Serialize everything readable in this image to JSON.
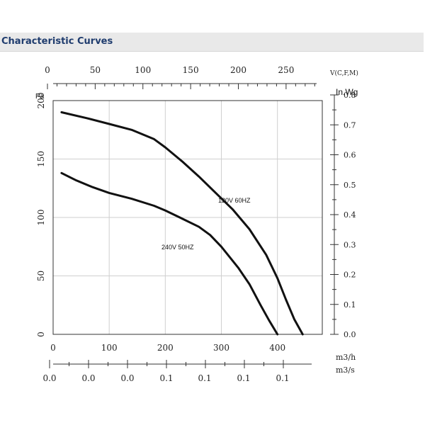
{
  "page": {
    "section_title": "Characteristic Curves"
  },
  "chart_data": {
    "type": "line",
    "title": "",
    "xlabel": "m3/h",
    "ylabel": "Pa",
    "xlim": [
      0,
      480
    ],
    "ylim": [
      0,
      200
    ],
    "x_ticks": [
      "0",
      "100",
      "200",
      "300",
      "400"
    ],
    "y_ticks": [
      "0",
      "50",
      "100",
      "150",
      "200"
    ],
    "grid": true,
    "top_axis": {
      "label": "V(C,F,M)",
      "ticks": [
        "0",
        "50",
        "100",
        "150",
        "200",
        "250"
      ],
      "lim": [
        0,
        282
      ]
    },
    "right_axis": {
      "label": "In.Wg",
      "ticks": [
        "0.0",
        "0.1",
        "0.2",
        "0.3",
        "0.4",
        "0.5",
        "0.6",
        "0.7",
        "0.8"
      ],
      "lim": [
        0,
        0.8
      ]
    },
    "bottom_axis2": {
      "label": "m3/s",
      "ticks": [
        "0.0",
        "0.0",
        "0.0",
        "0.1",
        "0.1",
        "0.1",
        "0.1"
      ]
    },
    "series": [
      {
        "name": "120V 60HZ",
        "x": [
          15,
          60,
          100,
          140,
          180,
          200,
          230,
          260,
          290,
          320,
          350,
          380,
          400,
          415,
          430,
          445
        ],
        "y": [
          190,
          185,
          180,
          175,
          167,
          160,
          148,
          135,
          121,
          107,
          90,
          68,
          48,
          30,
          13,
          0
        ]
      },
      {
        "name": "240V 50HZ",
        "x": [
          15,
          40,
          70,
          100,
          140,
          180,
          200,
          230,
          260,
          280,
          300,
          330,
          350,
          370,
          385,
          400
        ],
        "y": [
          138,
          132,
          126,
          121,
          116,
          110,
          106,
          99,
          92,
          85,
          75,
          57,
          43,
          25,
          12,
          0
        ]
      }
    ]
  }
}
